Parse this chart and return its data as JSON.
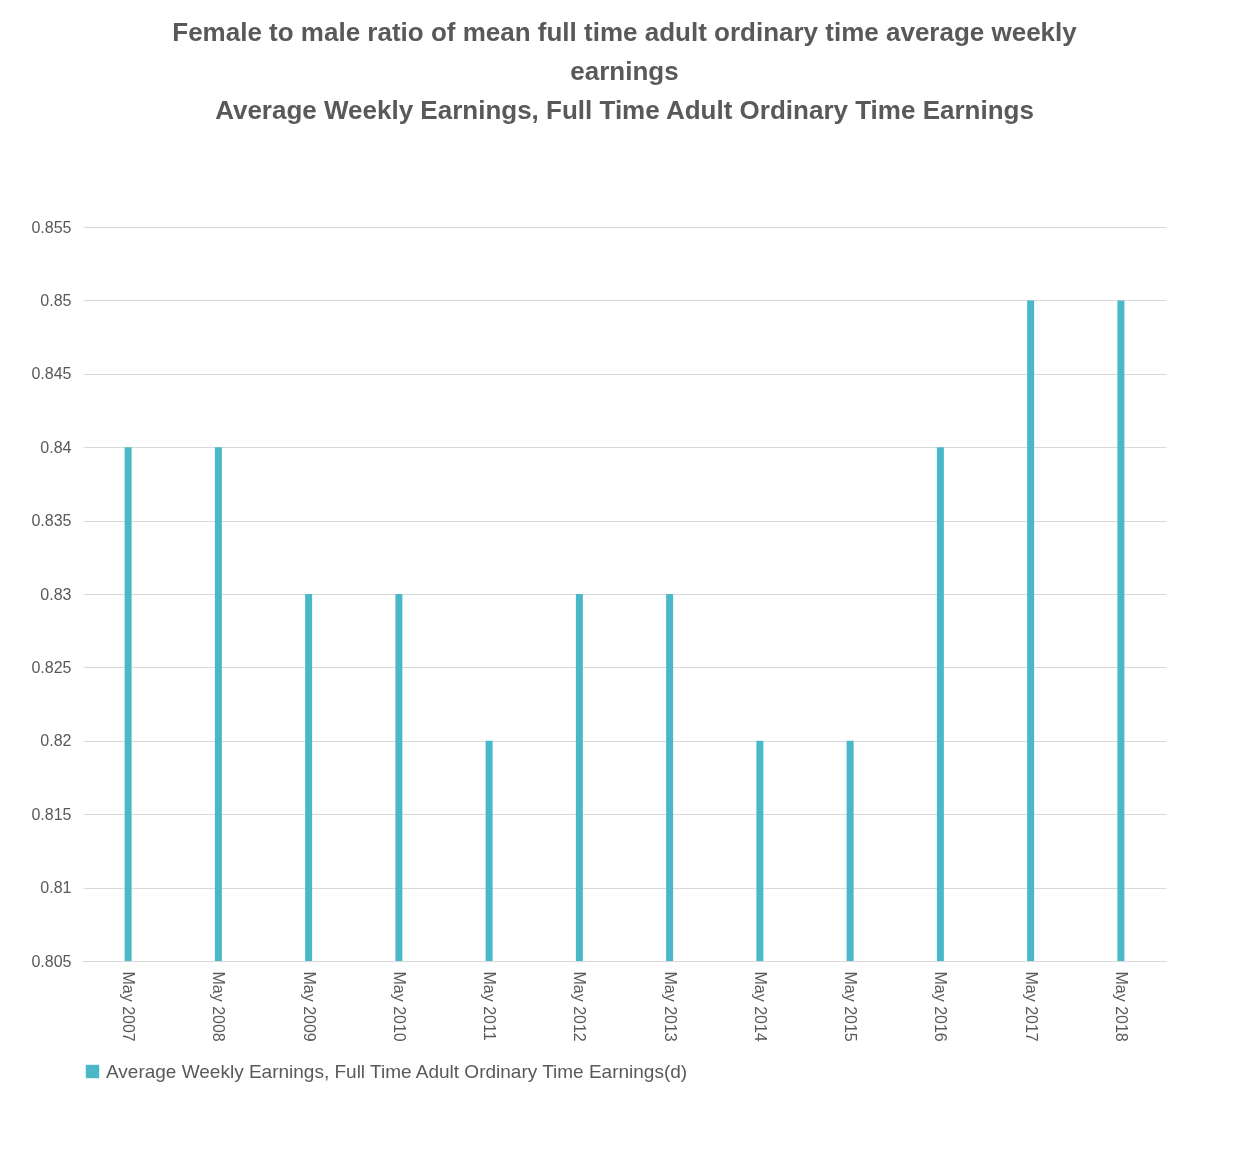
{
  "chart_data": {
    "type": "bar",
    "title": "Female to male ratio of mean full time adult ordinary time average weekly earnings",
    "subtitle": "Average Weekly Earnings, Full Time Adult Ordinary Time Earnings",
    "categories": [
      "May 2007",
      "May 2008",
      "May 2009",
      "May 2010",
      "May 2011",
      "May 2012",
      "May 2013",
      "May 2014",
      "May 2015",
      "May 2016",
      "May 2017",
      "May 2018"
    ],
    "series": [
      {
        "name": "Average Weekly Earnings, Full Time Adult Ordinary Time Earnings(d)",
        "color": "#4bb8c8",
        "values": [
          0.84,
          0.84,
          0.83,
          0.83,
          0.82,
          0.83,
          0.83,
          0.82,
          0.82,
          0.84,
          0.85,
          0.85
        ]
      }
    ],
    "ylim": [
      0.805,
      0.855
    ],
    "yticks": [
      0.805,
      0.81,
      0.815,
      0.82,
      0.825,
      0.83,
      0.835,
      0.84,
      0.845,
      0.85,
      0.855
    ],
    "grid": "y",
    "legend": "bottom"
  }
}
